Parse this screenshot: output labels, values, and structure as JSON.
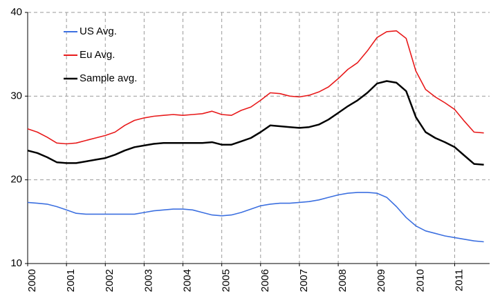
{
  "chart_data": {
    "type": "line",
    "x": [
      2000,
      2000.25,
      2000.5,
      2000.75,
      2001,
      2001.25,
      2001.5,
      2001.75,
      2002,
      2002.25,
      2002.5,
      2002.75,
      2003,
      2003.25,
      2003.5,
      2003.75,
      2004,
      2004.25,
      2004.5,
      2004.75,
      2005,
      2005.25,
      2005.5,
      2005.75,
      2006,
      2006.25,
      2006.5,
      2006.75,
      2007,
      2007.25,
      2007.5,
      2007.75,
      2008,
      2008.25,
      2008.5,
      2008.75,
      2009,
      2009.25,
      2009.5,
      2009.75,
      2010,
      2010.25,
      2010.5,
      2010.75,
      2011,
      2011.25,
      2011.5,
      2011.75
    ],
    "series": [
      {
        "name": "US Avg.",
        "color": "#3b6fe0",
        "values": [
          17.3,
          17.2,
          17.1,
          16.8,
          16.4,
          16.0,
          15.9,
          15.9,
          15.9,
          15.9,
          15.9,
          15.9,
          16.1,
          16.3,
          16.4,
          16.5,
          16.5,
          16.4,
          16.1,
          15.8,
          15.7,
          15.8,
          16.1,
          16.5,
          16.9,
          17.1,
          17.2,
          17.2,
          17.3,
          17.4,
          17.6,
          17.9,
          18.2,
          18.4,
          18.5,
          18.5,
          18.4,
          17.9,
          16.8,
          15.5,
          14.5,
          13.9,
          13.6,
          13.3,
          13.1,
          12.9,
          12.7,
          12.6
        ]
      },
      {
        "name": "Eu Avg.",
        "color": "#e8191a",
        "values": [
          26.1,
          25.7,
          25.1,
          24.4,
          24.3,
          24.4,
          24.7,
          25.0,
          25.3,
          25.7,
          26.5,
          27.1,
          27.4,
          27.6,
          27.7,
          27.8,
          27.7,
          27.8,
          27.9,
          28.2,
          27.8,
          27.7,
          28.3,
          28.7,
          29.5,
          30.4,
          30.3,
          30.0,
          29.9,
          30.1,
          30.5,
          31.1,
          32.1,
          33.2,
          34.0,
          35.4,
          37.0,
          37.7,
          37.8,
          36.9,
          33.0,
          30.8,
          29.9,
          29.2,
          28.4,
          27.0,
          25.7,
          25.6
        ]
      },
      {
        "name": "Sample avg.",
        "color": "#000000",
        "values": [
          23.5,
          23.2,
          22.7,
          22.1,
          22.0,
          22.0,
          22.2,
          22.4,
          22.6,
          23.0,
          23.5,
          23.9,
          24.1,
          24.3,
          24.4,
          24.4,
          24.4,
          24.4,
          24.4,
          24.5,
          24.2,
          24.2,
          24.6,
          25.0,
          25.7,
          26.5,
          26.4,
          26.3,
          26.2,
          26.3,
          26.6,
          27.2,
          28.0,
          28.8,
          29.5,
          30.4,
          31.5,
          31.8,
          31.6,
          30.6,
          27.5,
          25.7,
          25.0,
          24.5,
          23.9,
          22.9,
          21.9,
          21.8
        ]
      }
    ],
    "xlim": [
      2000,
      2011.9
    ],
    "xticks": [
      2000,
      2001,
      2002,
      2003,
      2004,
      2005,
      2006,
      2007,
      2008,
      2009,
      2010,
      2011
    ],
    "ylim": [
      10,
      40
    ],
    "yticks": [
      10,
      20,
      30,
      40
    ],
    "grid": true
  }
}
